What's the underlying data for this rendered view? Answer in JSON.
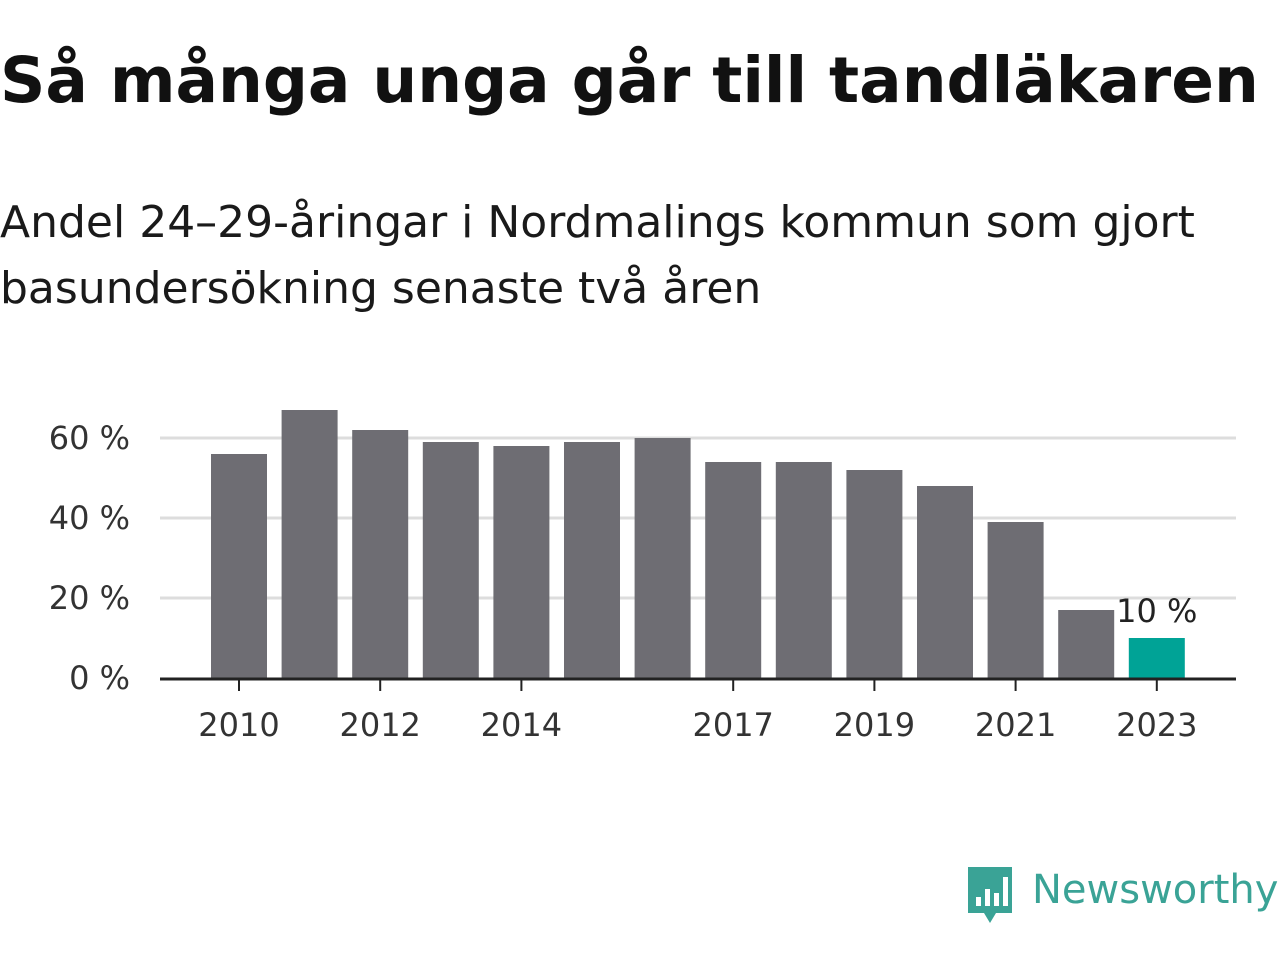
{
  "header": {
    "title": "Så många unga går till tandläkaren",
    "subtitle": "Andel 24–29-åringar i Nordmalings kommun som gjort basundersökning senaste två åren"
  },
  "brand": {
    "name": "Newsworthy",
    "icon": "newsworthy-logo-icon",
    "color": "#3aa396"
  },
  "colors": {
    "bar": "#6e6d73",
    "highlight": "#00a396",
    "grid": "#dddddd",
    "axis": "#222222"
  },
  "chart_data": {
    "type": "bar",
    "categories": [
      "2010",
      "2011",
      "2012",
      "2013",
      "2014",
      "2015",
      "2016",
      "2017",
      "2018",
      "2019",
      "2020",
      "2021",
      "2022",
      "2023"
    ],
    "values": [
      56,
      67,
      62,
      59,
      58,
      59,
      60,
      54,
      54,
      52,
      48,
      39,
      17,
      10
    ],
    "ylim": [
      0,
      60
    ],
    "yticks": [
      0,
      20,
      40,
      60
    ],
    "ytick_labels": [
      "0 %",
      "20 %",
      "40 %",
      "60 %"
    ],
    "xtick_labels": [
      "2010",
      "2012",
      "2014",
      "2017",
      "2019",
      "2021",
      "2023"
    ],
    "highlight_index": 13,
    "data_labels": [
      {
        "index": 13,
        "text": "10 %"
      }
    ],
    "grid": true,
    "legend": "none"
  }
}
